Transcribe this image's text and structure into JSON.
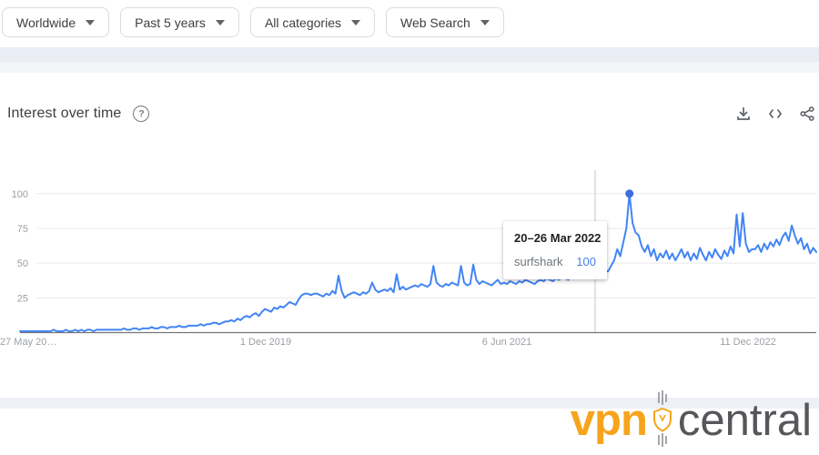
{
  "filters": {
    "region": "Worldwide",
    "time": "Past 5 years",
    "category": "All categories",
    "search_type": "Web Search"
  },
  "section": {
    "title": "Interest over time"
  },
  "tooltip": {
    "date": "20–26 Mar 2022",
    "term": "surfshark",
    "value": "100"
  },
  "branding": {
    "part1": "vpn",
    "part2": "central"
  },
  "colors": {
    "line_blue": "#4285f4",
    "dot_blue": "#3a6fdc",
    "tick_gray": "#9aa0a6",
    "grid_gray": "#e9e9e9",
    "axis_gray": "#757575",
    "brand_orange": "#f7a41d",
    "brand_gray": "#56575b"
  },
  "chart_data": {
    "type": "line",
    "title": "Interest over time",
    "x_range": [
      "27 May 2018",
      "21 May 2023"
    ],
    "x_ticks": [
      "27 May 20…",
      "1 Dec 2019",
      "6 Jun 2021",
      "11 Dec 2022"
    ],
    "y_ticks": [
      25,
      50,
      75,
      100
    ],
    "ylim": [
      0,
      100
    ],
    "grid": true,
    "legend": false,
    "highlight": {
      "index": 199,
      "date": "20–26 Mar 2022",
      "term": "surfshark",
      "value": 100
    },
    "series": [
      {
        "name": "surfshark",
        "values": [
          1,
          1,
          1,
          1,
          1,
          1,
          1,
          1,
          1,
          1,
          1,
          2,
          1,
          1,
          1,
          2,
          1,
          1,
          2,
          1,
          2,
          1,
          2,
          2,
          1,
          2,
          2,
          2,
          2,
          2,
          2,
          2,
          2,
          2,
          3,
          2,
          2,
          3,
          3,
          2,
          3,
          3,
          3,
          4,
          3,
          3,
          4,
          4,
          3,
          4,
          4,
          4,
          5,
          4,
          4,
          5,
          5,
          5,
          5,
          6,
          5,
          6,
          6,
          7,
          7,
          6,
          7,
          8,
          8,
          9,
          8,
          10,
          9,
          11,
          12,
          11,
          13,
          14,
          12,
          15,
          17,
          16,
          15,
          18,
          17,
          19,
          18,
          20,
          22,
          21,
          20,
          24,
          27,
          28,
          28,
          27,
          28,
          28,
          27,
          26,
          28,
          27,
          30,
          28,
          41,
          30,
          25,
          27,
          28,
          29,
          28,
          27,
          29,
          28,
          30,
          36,
          31,
          29,
          30,
          31,
          30,
          32,
          29,
          42,
          31,
          33,
          31,
          32,
          33,
          34,
          33,
          35,
          34,
          33,
          35,
          48,
          36,
          34,
          33,
          35,
          34,
          36,
          35,
          34,
          48,
          36,
          34,
          35,
          49,
          38,
          35,
          37,
          36,
          35,
          34,
          36,
          38,
          35,
          36,
          35,
          37,
          36,
          35,
          37,
          36,
          38,
          37,
          36,
          35,
          37,
          38,
          37,
          39,
          38,
          37,
          39,
          38,
          40,
          39,
          38,
          40,
          39,
          45,
          41,
          40,
          42,
          41,
          43,
          42,
          44,
          42,
          45,
          44,
          48,
          52,
          60,
          55,
          65,
          75,
          100,
          79,
          72,
          70,
          62,
          58,
          63,
          55,
          60,
          52,
          57,
          54,
          59,
          53,
          57,
          52,
          56,
          60,
          54,
          58,
          52,
          57,
          53,
          61,
          56,
          52,
          58,
          54,
          60,
          56,
          53,
          59,
          55,
          62,
          57,
          85,
          62,
          86,
          64,
          58,
          60,
          60,
          63,
          58,
          64,
          60,
          65,
          62,
          67,
          63,
          69,
          72,
          66,
          77,
          70,
          64,
          68,
          60,
          64,
          57,
          61,
          58
        ]
      }
    ]
  }
}
